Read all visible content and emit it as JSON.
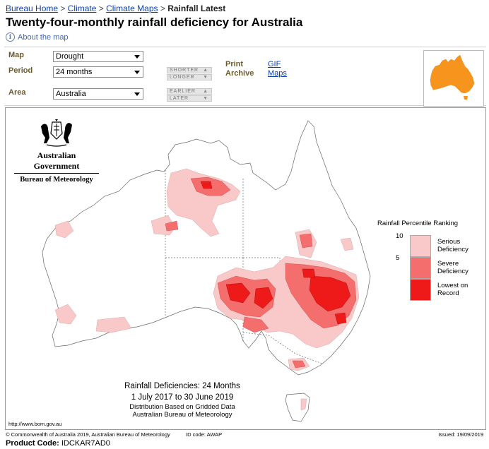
{
  "breadcrumb": {
    "items": [
      "Bureau Home",
      "Climate",
      "Climate Maps"
    ],
    "separator": ">",
    "current": "Rainfall Latest"
  },
  "page_title": "Twenty-four-monthly rainfall deficiency for Australia",
  "about_link": "About the map",
  "controls": {
    "map_label": "Map",
    "map_value": "Drought",
    "period_label": "Period",
    "period_value": "24 months",
    "area_label": "Area",
    "area_value": "Australia",
    "shorter": "SHORTER",
    "longer": "LONGER",
    "earlier": "EARLIER",
    "later": "LATER",
    "print_label": "Print",
    "archive_label": "Archive",
    "gif_link": "GIF",
    "maps_link": "Maps"
  },
  "thumbnail": {
    "map_color": "#f7941d"
  },
  "map": {
    "agency_gov": "Australian Government",
    "agency_bom": "Bureau of Meteorology",
    "legend_title": "Rainfall Percentile Ranking",
    "legend": [
      {
        "tick": "10",
        "label": "Serious Deficiency",
        "color": "#f9c9c9"
      },
      {
        "tick": "5",
        "label": "Severe Deficiency",
        "color": "#f46e6e"
      },
      {
        "tick": "",
        "label": "Lowest on Record",
        "color": "#ee1a1a"
      }
    ],
    "caption_line1": "Rainfall Deficiencies: 24 Months",
    "caption_line2": "1 July 2017 to 30 June 2019",
    "caption_line3": "Distribution Based on Gridded Data",
    "caption_line4": "Australian Bureau of Meteorology",
    "url": "http://www.bom.gov.au"
  },
  "footer": {
    "copyright": "© Commonwealth of Australia 2019, Australian Bureau of Meteorology",
    "id_code": "ID code: AWAP",
    "issued": "Issued: 19/09/2019",
    "product_label": "Product Code:",
    "product_code": "IDCKAR7AD0"
  }
}
